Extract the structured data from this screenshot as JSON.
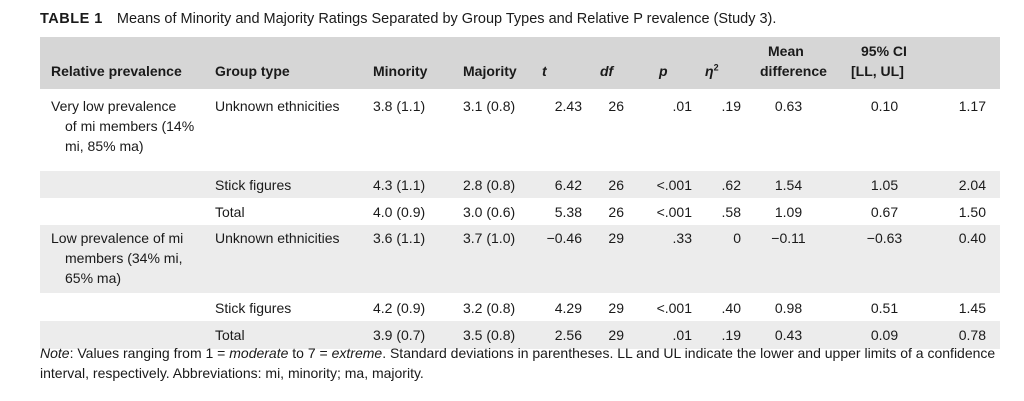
{
  "caption": {
    "label": "TABLE 1",
    "text": "Means of Minority and Majority Ratings Separated by Group Types and Relative P revalence (Study 3)."
  },
  "headers": {
    "relative_prevalence": "Relative prevalence",
    "group_type": "Group type",
    "minority": "Minority",
    "majority": "Majority",
    "t": "t",
    "df": "df",
    "p": "p",
    "eta_base": "η",
    "eta_sup": "2",
    "mean_diff_line1": "Mean",
    "mean_diff_line2": "difference",
    "ci_line1": "95% CI",
    "ci_line2": "[LL, UL]"
  },
  "rows": [
    {
      "prev1": "Very low prevalence",
      "prev2": "of mi members (14%",
      "prev3": "mi, 85% ma)",
      "group": "Unknown ethnicities",
      "minority": "3.8 (1.1)",
      "majority": "3.1 (0.8)",
      "t": "2.43",
      "df": "26",
      "p": ".01",
      "eta": ".19",
      "md": "0.63",
      "ll": "0.10",
      "ul": "1.17"
    },
    {
      "prev1": "",
      "prev2": "",
      "prev3": "",
      "group": "Stick figures",
      "minority": "4.3 (1.1)",
      "majority": "2.8 (0.8)",
      "t": "6.42",
      "df": "26",
      "p": "<.001",
      "eta": ".62",
      "md": "1.54",
      "ll": "1.05",
      "ul": "2.04"
    },
    {
      "prev1": "",
      "prev2": "",
      "prev3": "",
      "group": "Total",
      "minority": "4.0 (0.9)",
      "majority": "3.0 (0.6)",
      "t": "5.38",
      "df": "26",
      "p": "<.001",
      "eta": ".58",
      "md": "1.09",
      "ll": "0.67",
      "ul": "1.50"
    },
    {
      "prev1": "Low prevalence of mi",
      "prev2": "members (34% mi,",
      "prev3": "65% ma)",
      "group": "Unknown ethnicities",
      "minority": "3.6 (1.1)",
      "majority": "3.7 (1.0)",
      "t": "−0.46",
      "df": "29",
      "p": ".33",
      "eta": "0",
      "md": "−0.11",
      "ll": "−0.63",
      "ul": "0.40"
    },
    {
      "prev1": "",
      "prev2": "",
      "prev3": "",
      "group": "Stick figures",
      "minority": "4.2 (0.9)",
      "majority": "3.2 (0.8)",
      "t": "4.29",
      "df": "29",
      "p": "<.001",
      "eta": ".40",
      "md": "0.98",
      "ll": "0.51",
      "ul": "1.45"
    },
    {
      "prev1": "",
      "prev2": "",
      "prev3": "",
      "group": "Total",
      "minority": "3.9 (0.7)",
      "majority": "3.5 (0.8)",
      "t": "2.56",
      "df": "29",
      "p": ".01",
      "eta": ".19",
      "md": "0.43",
      "ll": "0.09",
      "ul": "0.78"
    }
  ],
  "note": {
    "label": "Note",
    "text1": ": Values ranging from 1 = ",
    "moderate": "moderate",
    "text2": " to 7 = ",
    "extreme": "extreme",
    "text3": ". Standard deviations in parentheses. LL and UL indicate the lower and upper limits of a confidence interval, respectively. Abbreviations: mi, minority; ma, majority."
  }
}
